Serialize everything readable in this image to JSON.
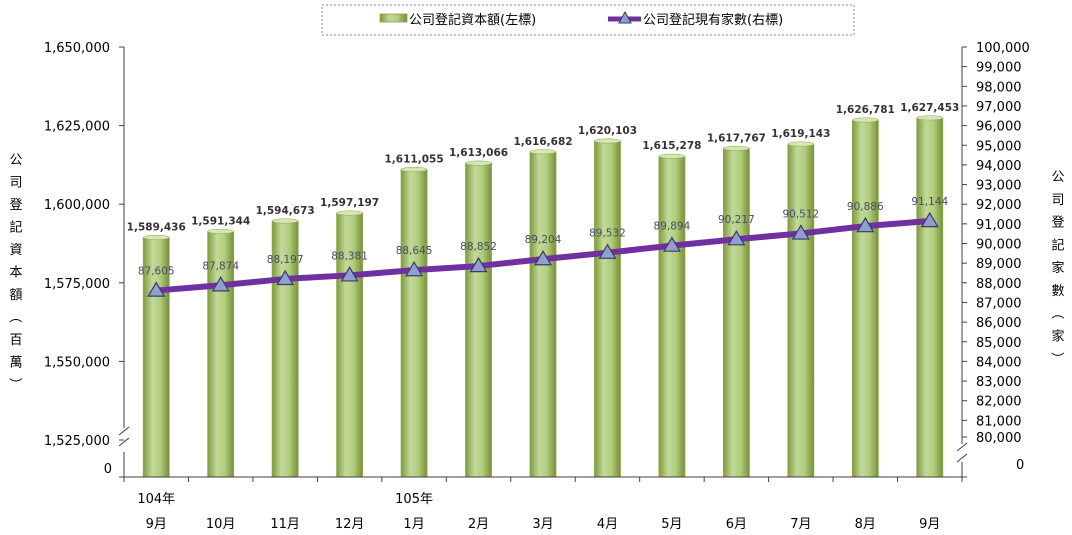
{
  "chart_data": {
    "type": "bar+line",
    "categories": [
      "9月",
      "10月",
      "11月",
      "12月",
      "1月",
      "2月",
      "3月",
      "4月",
      "5月",
      "6月",
      "7月",
      "8月",
      "9月"
    ],
    "year_labels": [
      "104年",
      "",
      "",
      "",
      "105年",
      "",
      "",
      "",
      "",
      "",
      "",
      "",
      ""
    ],
    "series": [
      {
        "name": "公司登記資本額(左標)",
        "type": "bar",
        "axis": "left",
        "color": "#9bbb59",
        "values": [
          1589436,
          1591344,
          1594673,
          1597197,
          1611055,
          1613066,
          1616682,
          1620103,
          1615278,
          1617767,
          1619143,
          1626781,
          1627453
        ],
        "labels": [
          "1,589,436",
          "1,591,344",
          "1,594,673",
          "1,597,197",
          "1,611,055",
          "1,613,066",
          "1,616,682",
          "1,620,103",
          "1,615,278",
          "1,617,767",
          "1,619,143",
          "1,626,781",
          "1,627,453"
        ]
      },
      {
        "name": "公司登記現有家數(右標)",
        "type": "line",
        "axis": "right",
        "color": "#7030a0",
        "marker_color": "#8ea0cc",
        "values": [
          87605,
          87874,
          88197,
          88381,
          88645,
          88852,
          89204,
          89532,
          89894,
          90217,
          90512,
          90886,
          91144
        ],
        "labels": [
          "87,605",
          "87,874",
          "88,197",
          "88,381",
          "88,645",
          "88,852",
          "89,204",
          "89,532",
          "89,894",
          "90,217",
          "90,512",
          "90,886",
          "91,144"
        ]
      }
    ],
    "left_axis": {
      "title": "公司登記資本額（百萬）",
      "range": [
        1525000,
        1650000
      ],
      "ticks": [
        1525000,
        1550000,
        1575000,
        1600000,
        1625000,
        1650000
      ],
      "tick_labels": [
        "1,525,000",
        "1,550,000",
        "1,575,000",
        "1,600,000",
        "1,625,000",
        "1,650,000"
      ],
      "break_label": "0"
    },
    "right_axis": {
      "title": "公司登記家數（家）",
      "range": [
        80000,
        100000
      ],
      "ticks": [
        80000,
        81000,
        82000,
        83000,
        84000,
        85000,
        86000,
        87000,
        88000,
        89000,
        90000,
        91000,
        92000,
        93000,
        94000,
        95000,
        96000,
        97000,
        98000,
        99000,
        100000
      ],
      "tick_labels": [
        "80,000",
        "81,000",
        "82,000",
        "83,000",
        "84,000",
        "85,000",
        "86,000",
        "87,000",
        "88,000",
        "89,000",
        "90,000",
        "91,000",
        "92,000",
        "93,000",
        "94,000",
        "95,000",
        "96,000",
        "97,000",
        "98,000",
        "99,000",
        "100,000"
      ],
      "break_label": "0"
    },
    "legend_position": "top",
    "grid": false
  }
}
